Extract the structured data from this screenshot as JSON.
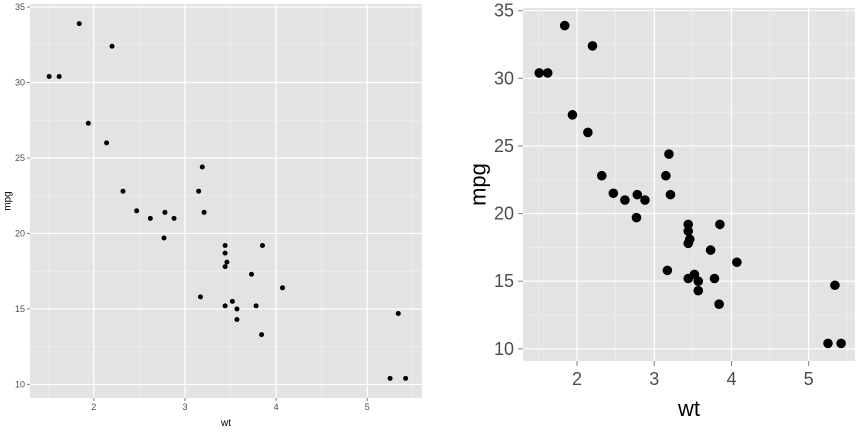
{
  "chart_data": [
    {
      "type": "scatter",
      "title": "",
      "xlabel": "wt",
      "ylabel": "mpg",
      "xlim": [
        1.3,
        5.6
      ],
      "ylim": [
        9.1,
        35.2
      ],
      "x_ticks": [
        2,
        3,
        4,
        5
      ],
      "y_ticks": [
        10,
        15,
        20,
        25,
        30,
        35
      ],
      "grid": true,
      "background": "#e3e3e3",
      "grid_color": "#ffffff",
      "point_color": "#000000",
      "points": [
        {
          "x": 1.51,
          "y": 30.4
        },
        {
          "x": 1.62,
          "y": 30.4
        },
        {
          "x": 1.84,
          "y": 33.9
        },
        {
          "x": 1.94,
          "y": 27.3
        },
        {
          "x": 2.14,
          "y": 26.0
        },
        {
          "x": 2.2,
          "y": 32.4
        },
        {
          "x": 2.32,
          "y": 22.8
        },
        {
          "x": 2.47,
          "y": 21.5
        },
        {
          "x": 2.62,
          "y": 21.0
        },
        {
          "x": 2.77,
          "y": 19.7
        },
        {
          "x": 2.78,
          "y": 21.4
        },
        {
          "x": 2.88,
          "y": 21.0
        },
        {
          "x": 3.15,
          "y": 22.8
        },
        {
          "x": 3.17,
          "y": 15.8
        },
        {
          "x": 3.19,
          "y": 24.4
        },
        {
          "x": 3.21,
          "y": 21.4
        },
        {
          "x": 3.44,
          "y": 18.7
        },
        {
          "x": 3.44,
          "y": 19.2
        },
        {
          "x": 3.44,
          "y": 17.8
        },
        {
          "x": 3.44,
          "y": 15.2
        },
        {
          "x": 3.46,
          "y": 18.1
        },
        {
          "x": 3.52,
          "y": 15.5
        },
        {
          "x": 3.57,
          "y": 14.3
        },
        {
          "x": 3.57,
          "y": 15.0
        },
        {
          "x": 3.73,
          "y": 17.3
        },
        {
          "x": 3.78,
          "y": 15.2
        },
        {
          "x": 3.84,
          "y": 13.3
        },
        {
          "x": 3.85,
          "y": 19.2
        },
        {
          "x": 4.07,
          "y": 16.4
        },
        {
          "x": 5.25,
          "y": 10.4
        },
        {
          "x": 5.34,
          "y": 14.7
        },
        {
          "x": 5.42,
          "y": 10.4
        }
      ]
    },
    {
      "type": "scatter",
      "title": "",
      "xlabel": "wt",
      "ylabel": "mpg",
      "xlim": [
        1.3,
        5.6
      ],
      "ylim": [
        9.1,
        35.2
      ],
      "x_ticks": [
        2,
        3,
        4,
        5
      ],
      "y_ticks": [
        10,
        15,
        20,
        25,
        30,
        35
      ],
      "grid": true,
      "background": "#e3e3e3",
      "grid_color": "#ffffff",
      "point_color": "#000000",
      "points": [
        {
          "x": 1.51,
          "y": 30.4
        },
        {
          "x": 1.62,
          "y": 30.4
        },
        {
          "x": 1.84,
          "y": 33.9
        },
        {
          "x": 1.94,
          "y": 27.3
        },
        {
          "x": 2.14,
          "y": 26.0
        },
        {
          "x": 2.2,
          "y": 32.4
        },
        {
          "x": 2.32,
          "y": 22.8
        },
        {
          "x": 2.47,
          "y": 21.5
        },
        {
          "x": 2.62,
          "y": 21.0
        },
        {
          "x": 2.77,
          "y": 19.7
        },
        {
          "x": 2.78,
          "y": 21.4
        },
        {
          "x": 2.88,
          "y": 21.0
        },
        {
          "x": 3.15,
          "y": 22.8
        },
        {
          "x": 3.17,
          "y": 15.8
        },
        {
          "x": 3.19,
          "y": 24.4
        },
        {
          "x": 3.21,
          "y": 21.4
        },
        {
          "x": 3.44,
          "y": 18.7
        },
        {
          "x": 3.44,
          "y": 19.2
        },
        {
          "x": 3.44,
          "y": 17.8
        },
        {
          "x": 3.44,
          "y": 15.2
        },
        {
          "x": 3.46,
          "y": 18.1
        },
        {
          "x": 3.52,
          "y": 15.5
        },
        {
          "x": 3.57,
          "y": 14.3
        },
        {
          "x": 3.57,
          "y": 15.0
        },
        {
          "x": 3.73,
          "y": 17.3
        },
        {
          "x": 3.78,
          "y": 15.2
        },
        {
          "x": 3.84,
          "y": 13.3
        },
        {
          "x": 3.85,
          "y": 19.2
        },
        {
          "x": 4.07,
          "y": 16.4
        },
        {
          "x": 5.25,
          "y": 10.4
        },
        {
          "x": 5.34,
          "y": 14.7
        },
        {
          "x": 5.42,
          "y": 10.4
        }
      ]
    }
  ]
}
